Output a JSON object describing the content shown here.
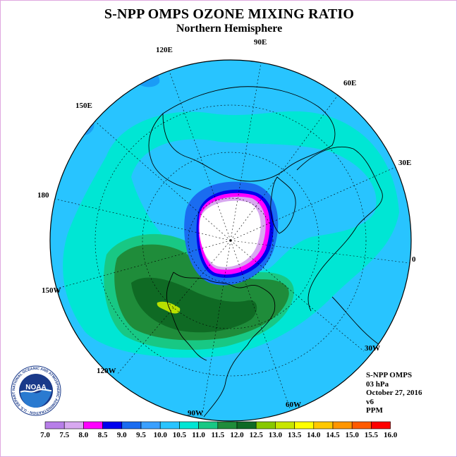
{
  "title": "S-NPP OMPS OZONE MIXING RATIO",
  "subtitle": "Northern Hemisphere",
  "longitude_labels": [
    "90E",
    "60E",
    "30E",
    "0",
    "30W",
    "60W",
    "90W",
    "120W",
    "150W",
    "180",
    "150E",
    "120E"
  ],
  "info": {
    "instrument": "S-NPP OMPS",
    "level": "03 hPa",
    "date": "October 27, 2016",
    "version": "v6",
    "units": "PPM"
  },
  "colorbar": {
    "ticks": [
      "7.0",
      "7.5",
      "8.0",
      "8.5",
      "9.0",
      "9.5",
      "10.0",
      "10.5",
      "11.0",
      "11.5",
      "12.0",
      "12.5",
      "13.0",
      "13.5",
      "14.0",
      "14.5",
      "15.0",
      "15.5",
      "16.0"
    ],
    "colors": [
      "#b77ee8",
      "#d8a8f0",
      "#ff00ff",
      "#0000ee",
      "#1a6cf0",
      "#3aa0ff",
      "#28c4ff",
      "#00e6d4",
      "#18c884",
      "#1f8c3a",
      "#0f6a24",
      "#88c800",
      "#c8e600",
      "#ffff00",
      "#ffc800",
      "#ff9600",
      "#ff5a00",
      "#ff0000",
      "#8b5a3c"
    ]
  },
  "logo": {
    "text": "NOAA",
    "ring_text": "NATIONAL OCEANIC AND ATMOSPHERIC ADMINISTRATION · U.S. DEPARTMENT OF COMMERCE"
  }
}
